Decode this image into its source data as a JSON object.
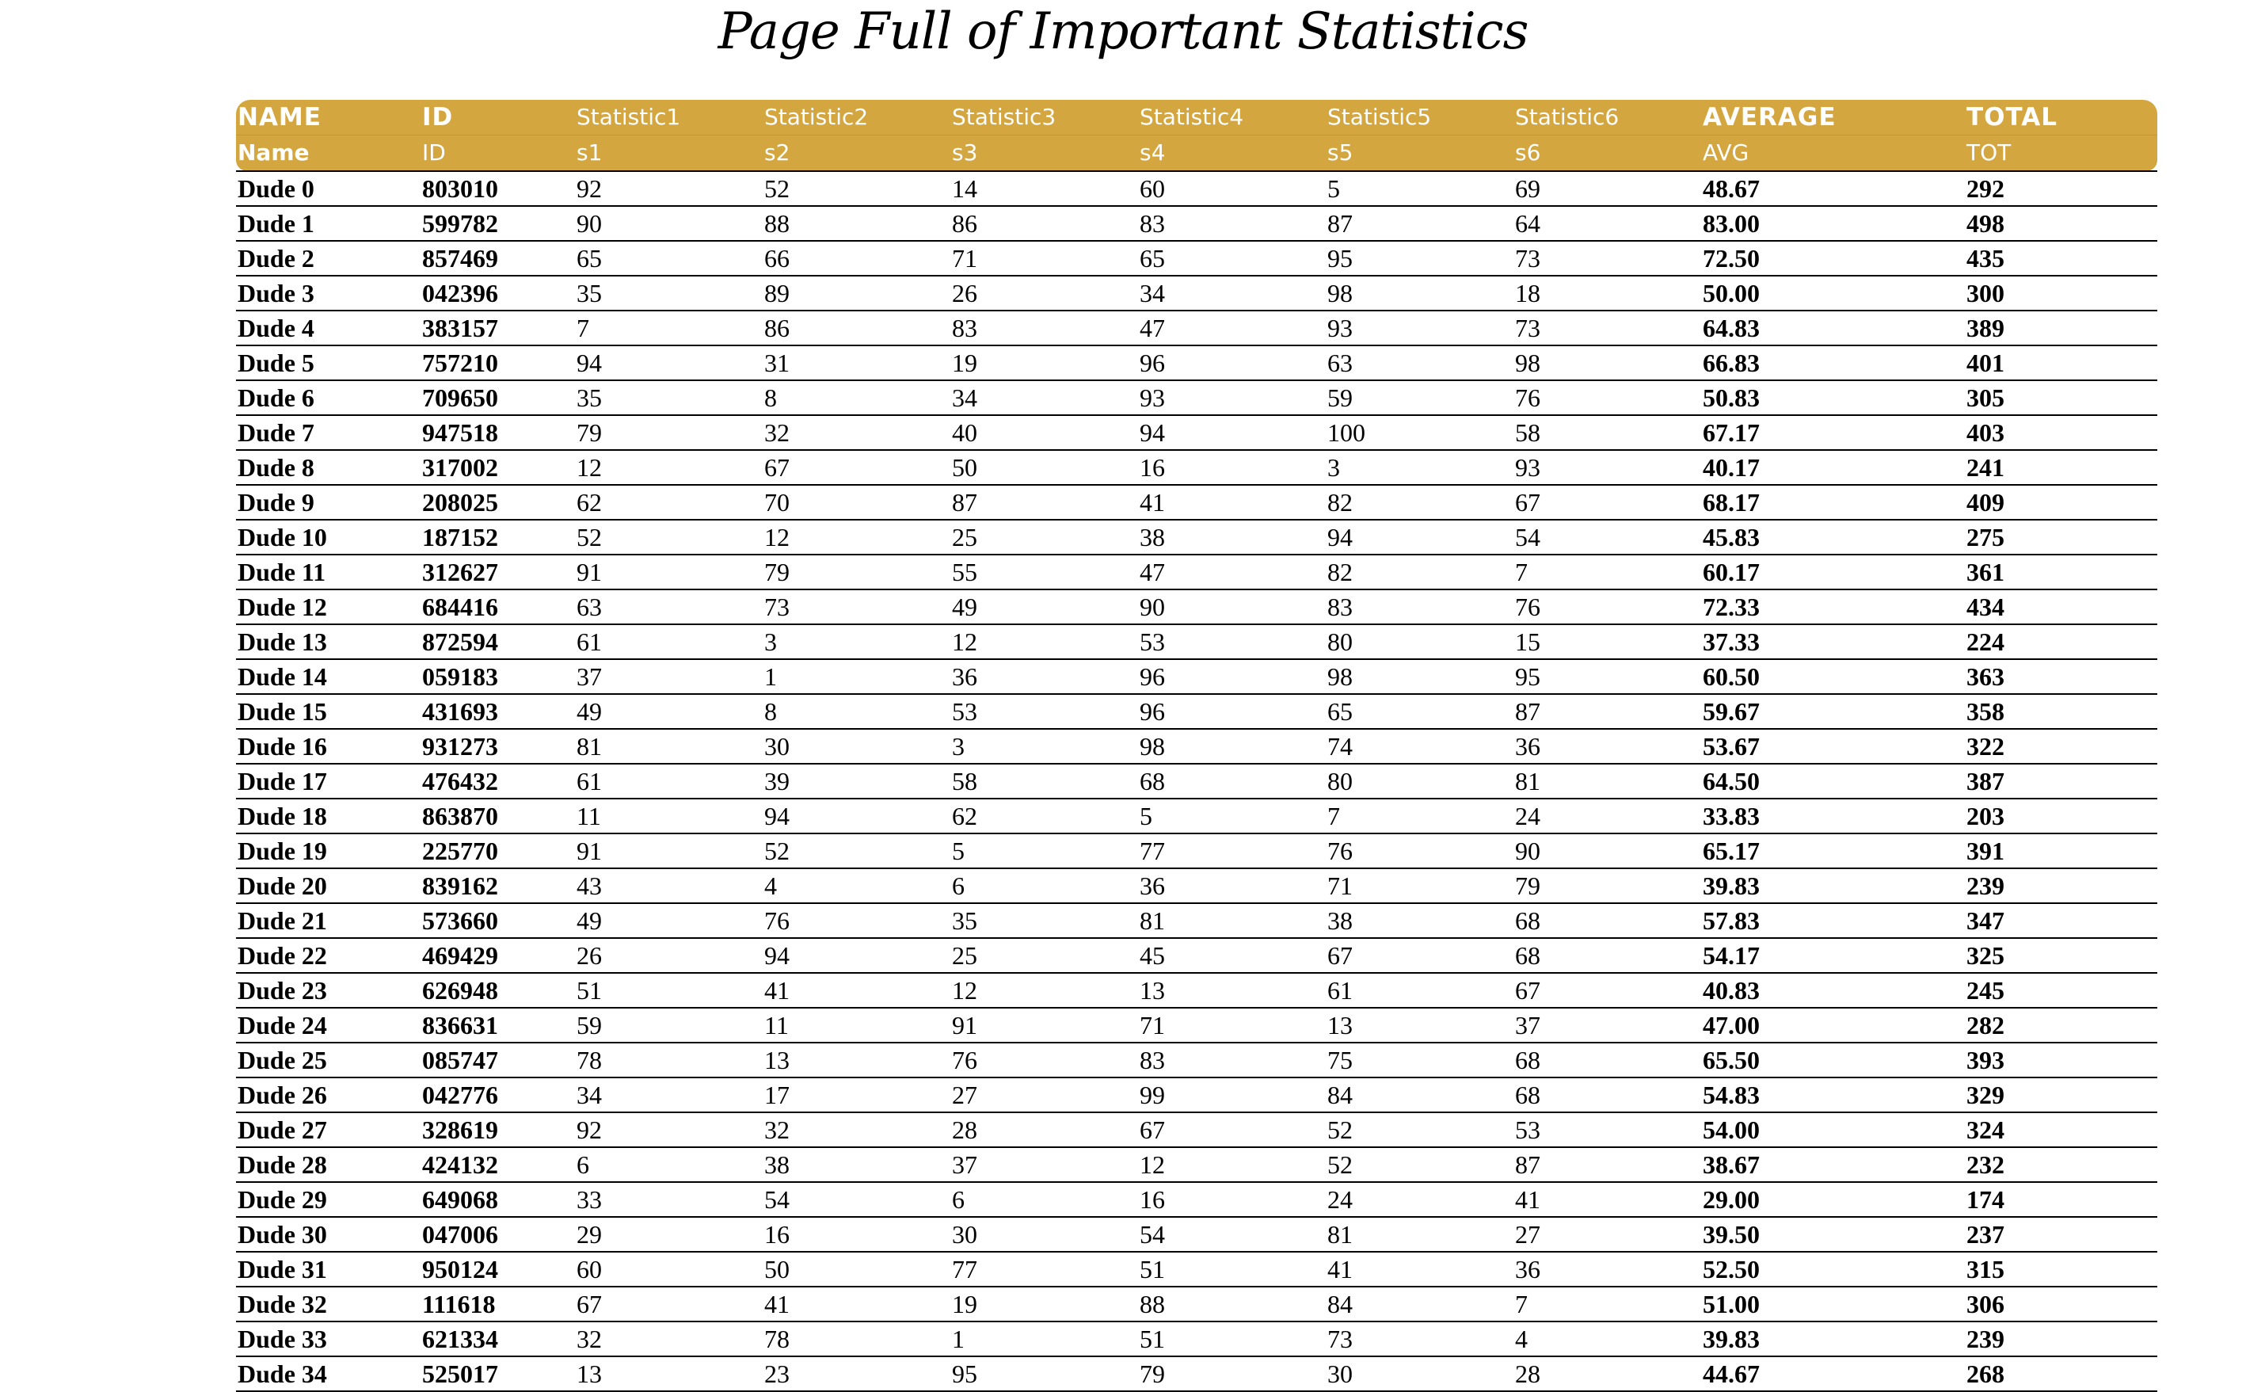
{
  "title": "Page Full of Important Statistics",
  "header_row_1": [
    "NAME",
    "ID",
    "Statistic1",
    "Statistic2",
    "Statistic3",
    "Statistic4",
    "Statistic5",
    "Statistic6",
    "AVERAGE",
    "TOTAL"
  ],
  "header_row_2": [
    "Name",
    "ID",
    "s1",
    "s2",
    "s3",
    "s4",
    "s5",
    "s6",
    "AVG",
    "TOT"
  ],
  "rows": [
    [
      "Dude 0",
      "803010",
      "92",
      "52",
      "14",
      "60",
      "5",
      "69",
      "48.67",
      "292"
    ],
    [
      "Dude 1",
      "599782",
      "90",
      "88",
      "86",
      "83",
      "87",
      "64",
      "83.00",
      "498"
    ],
    [
      "Dude 2",
      "857469",
      "65",
      "66",
      "71",
      "65",
      "95",
      "73",
      "72.50",
      "435"
    ],
    [
      "Dude 3",
      "042396",
      "35",
      "89",
      "26",
      "34",
      "98",
      "18",
      "50.00",
      "300"
    ],
    [
      "Dude 4",
      "383157",
      "7",
      "86",
      "83",
      "47",
      "93",
      "73",
      "64.83",
      "389"
    ],
    [
      "Dude 5",
      "757210",
      "94",
      "31",
      "19",
      "96",
      "63",
      "98",
      "66.83",
      "401"
    ],
    [
      "Dude 6",
      "709650",
      "35",
      "8",
      "34",
      "93",
      "59",
      "76",
      "50.83",
      "305"
    ],
    [
      "Dude 7",
      "947518",
      "79",
      "32",
      "40",
      "94",
      "100",
      "58",
      "67.17",
      "403"
    ],
    [
      "Dude 8",
      "317002",
      "12",
      "67",
      "50",
      "16",
      "3",
      "93",
      "40.17",
      "241"
    ],
    [
      "Dude 9",
      "208025",
      "62",
      "70",
      "87",
      "41",
      "82",
      "67",
      "68.17",
      "409"
    ],
    [
      "Dude 10",
      "187152",
      "52",
      "12",
      "25",
      "38",
      "94",
      "54",
      "45.83",
      "275"
    ],
    [
      "Dude 11",
      "312627",
      "91",
      "79",
      "55",
      "47",
      "82",
      "7",
      "60.17",
      "361"
    ],
    [
      "Dude 12",
      "684416",
      "63",
      "73",
      "49",
      "90",
      "83",
      "76",
      "72.33",
      "434"
    ],
    [
      "Dude 13",
      "872594",
      "61",
      "3",
      "12",
      "53",
      "80",
      "15",
      "37.33",
      "224"
    ],
    [
      "Dude 14",
      "059183",
      "37",
      "1",
      "36",
      "96",
      "98",
      "95",
      "60.50",
      "363"
    ],
    [
      "Dude 15",
      "431693",
      "49",
      "8",
      "53",
      "96",
      "65",
      "87",
      "59.67",
      "358"
    ],
    [
      "Dude 16",
      "931273",
      "81",
      "30",
      "3",
      "98",
      "74",
      "36",
      "53.67",
      "322"
    ],
    [
      "Dude 17",
      "476432",
      "61",
      "39",
      "58",
      "68",
      "80",
      "81",
      "64.50",
      "387"
    ],
    [
      "Dude 18",
      "863870",
      "11",
      "94",
      "62",
      "5",
      "7",
      "24",
      "33.83",
      "203"
    ],
    [
      "Dude 19",
      "225770",
      "91",
      "52",
      "5",
      "77",
      "76",
      "90",
      "65.17",
      "391"
    ],
    [
      "Dude 20",
      "839162",
      "43",
      "4",
      "6",
      "36",
      "71",
      "79",
      "39.83",
      "239"
    ],
    [
      "Dude 21",
      "573660",
      "49",
      "76",
      "35",
      "81",
      "38",
      "68",
      "57.83",
      "347"
    ],
    [
      "Dude 22",
      "469429",
      "26",
      "94",
      "25",
      "45",
      "67",
      "68",
      "54.17",
      "325"
    ],
    [
      "Dude 23",
      "626948",
      "51",
      "41",
      "12",
      "13",
      "61",
      "67",
      "40.83",
      "245"
    ],
    [
      "Dude 24",
      "836631",
      "59",
      "11",
      "91",
      "71",
      "13",
      "37",
      "47.00",
      "282"
    ],
    [
      "Dude 25",
      "085747",
      "78",
      "13",
      "76",
      "83",
      "75",
      "68",
      "65.50",
      "393"
    ],
    [
      "Dude 26",
      "042776",
      "34",
      "17",
      "27",
      "99",
      "84",
      "68",
      "54.83",
      "329"
    ],
    [
      "Dude 27",
      "328619",
      "92",
      "32",
      "28",
      "67",
      "52",
      "53",
      "54.00",
      "324"
    ],
    [
      "Dude 28",
      "424132",
      "6",
      "38",
      "37",
      "12",
      "52",
      "87",
      "38.67",
      "232"
    ],
    [
      "Dude 29",
      "649068",
      "33",
      "54",
      "6",
      "16",
      "24",
      "41",
      "29.00",
      "174"
    ],
    [
      "Dude 30",
      "047006",
      "29",
      "16",
      "30",
      "54",
      "81",
      "27",
      "39.50",
      "237"
    ],
    [
      "Dude 31",
      "950124",
      "60",
      "50",
      "77",
      "51",
      "41",
      "36",
      "52.50",
      "315"
    ],
    [
      "Dude 32",
      "111618",
      "67",
      "41",
      "19",
      "88",
      "84",
      "7",
      "51.00",
      "306"
    ],
    [
      "Dude 33",
      "621334",
      "32",
      "78",
      "1",
      "51",
      "73",
      "4",
      "39.83",
      "239"
    ],
    [
      "Dude 34",
      "525017",
      "13",
      "23",
      "95",
      "79",
      "30",
      "28",
      "44.67",
      "268"
    ]
  ],
  "colors": {
    "header_bg": "#d4a640",
    "header_text": "#ffffff",
    "row_rule": "#000000"
  }
}
